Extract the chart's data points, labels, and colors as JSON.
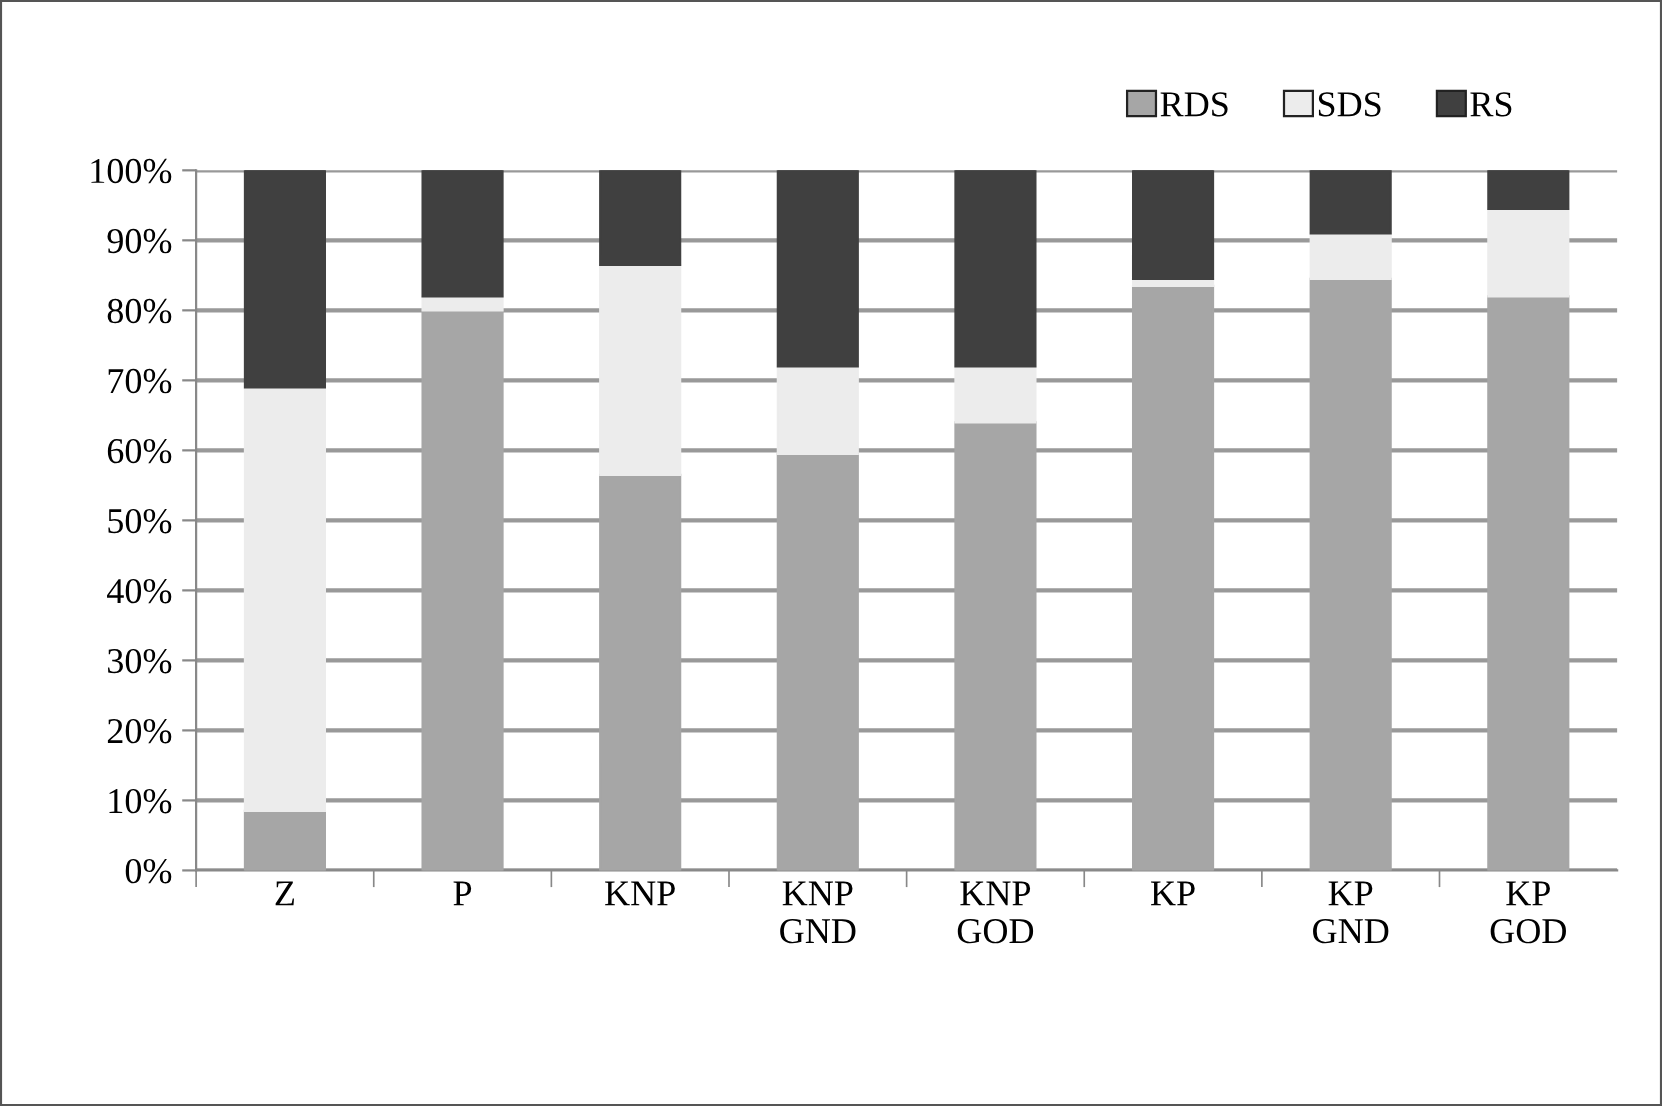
{
  "chart_data": {
    "type": "bar",
    "stacked": true,
    "categories": [
      "Z",
      "P",
      "KNP",
      "KNP\nGND",
      "KNP\nGOD",
      "KP",
      "KP\nGND",
      "KP\nGOD"
    ],
    "series": [
      {
        "name": "RDS",
        "color": "#a6a6a6",
        "values": [
          8.5,
          80,
          56.5,
          59.5,
          64,
          83.5,
          84.5,
          82
        ]
      },
      {
        "name": "SDS",
        "color": "#ececec",
        "values": [
          60.5,
          2,
          30,
          12.5,
          8,
          1,
          6.5,
          12.5
        ]
      },
      {
        "name": "RS",
        "color": "#404040",
        "values": [
          31,
          18,
          13.5,
          28,
          28,
          15.5,
          9,
          5.5
        ]
      }
    ],
    "ylim": [
      0,
      100
    ],
    "yticks": [
      {
        "value": 0,
        "label": "0%"
      },
      {
        "value": 10,
        "label": "10%"
      },
      {
        "value": 20,
        "label": "20%"
      },
      {
        "value": 30,
        "label": "30%"
      },
      {
        "value": 40,
        "label": "40%"
      },
      {
        "value": 50,
        "label": "50%"
      },
      {
        "value": 60,
        "label": "60%"
      },
      {
        "value": 70,
        "label": "70%"
      },
      {
        "value": 80,
        "label": "80%"
      },
      {
        "value": 90,
        "label": "90%"
      },
      {
        "value": 100,
        "label": "100%"
      }
    ],
    "grid": "y",
    "legend": "top right"
  }
}
